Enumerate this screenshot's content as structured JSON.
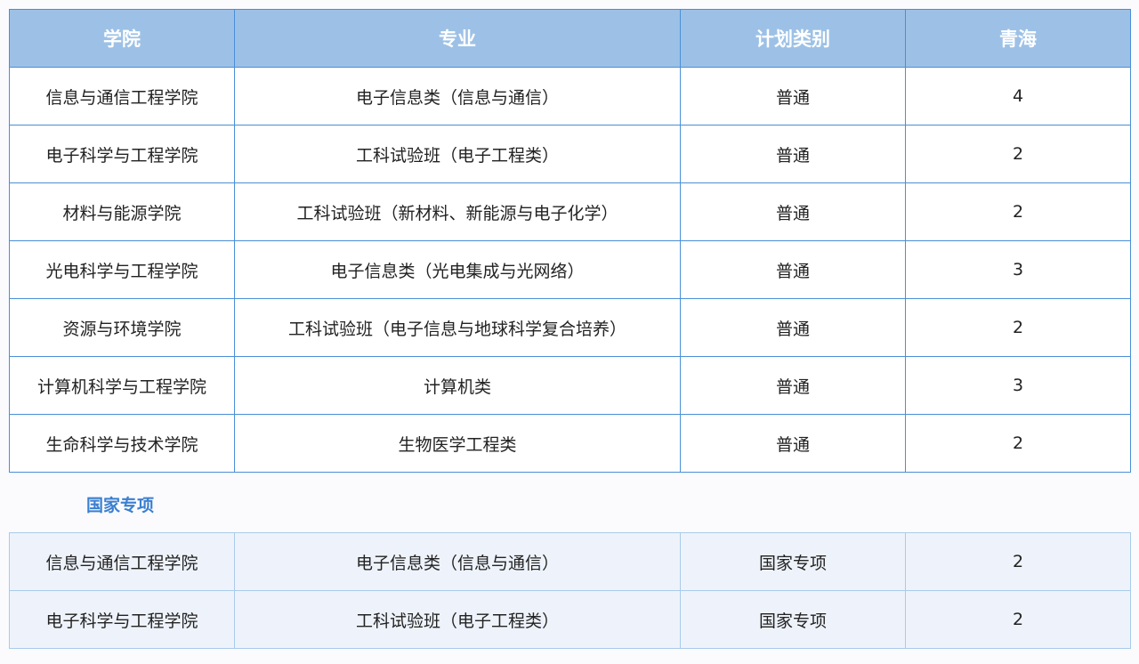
{
  "headers": [
    "学院",
    "专业",
    "计划类别",
    "青海"
  ],
  "rows": [
    [
      "信息与通信工程学院",
      "电子信息类（信息与通信）",
      "普通",
      "4"
    ],
    [
      "电子科学与工程学院",
      "工科试验班（电子工程类）",
      "普通",
      "2"
    ],
    [
      "材料与能源学院",
      "工科试验班（新材料、新能源与电子化学）",
      "普通",
      "2"
    ],
    [
      "光电科学与工程学院",
      "电子信息类（光电集成与光网络）",
      "普通",
      "3"
    ],
    [
      "资源与环境学院",
      "工科试验班（电子信息与地球科学复合培养）",
      "普通",
      "2"
    ],
    [
      "计算机科学与工程学院",
      "计算机类",
      "普通",
      "3"
    ],
    [
      "生命科学与技术学院",
      "生物医学工程类",
      "普通",
      "2"
    ]
  ],
  "section_title": "国家专项",
  "special_rows": [
    [
      "信息与通信工程学院",
      "电子信息类（信息与通信）",
      "国家专项",
      "2"
    ],
    [
      "电子科学与工程学院",
      "工科试验班（电子工程类）",
      "国家专项",
      "2"
    ]
  ],
  "colors": {
    "header_bg": "#9dc1e6",
    "border": "#4a8fd6",
    "section_title": "#3a7fd0",
    "special_bg": "#eef3fb"
  }
}
